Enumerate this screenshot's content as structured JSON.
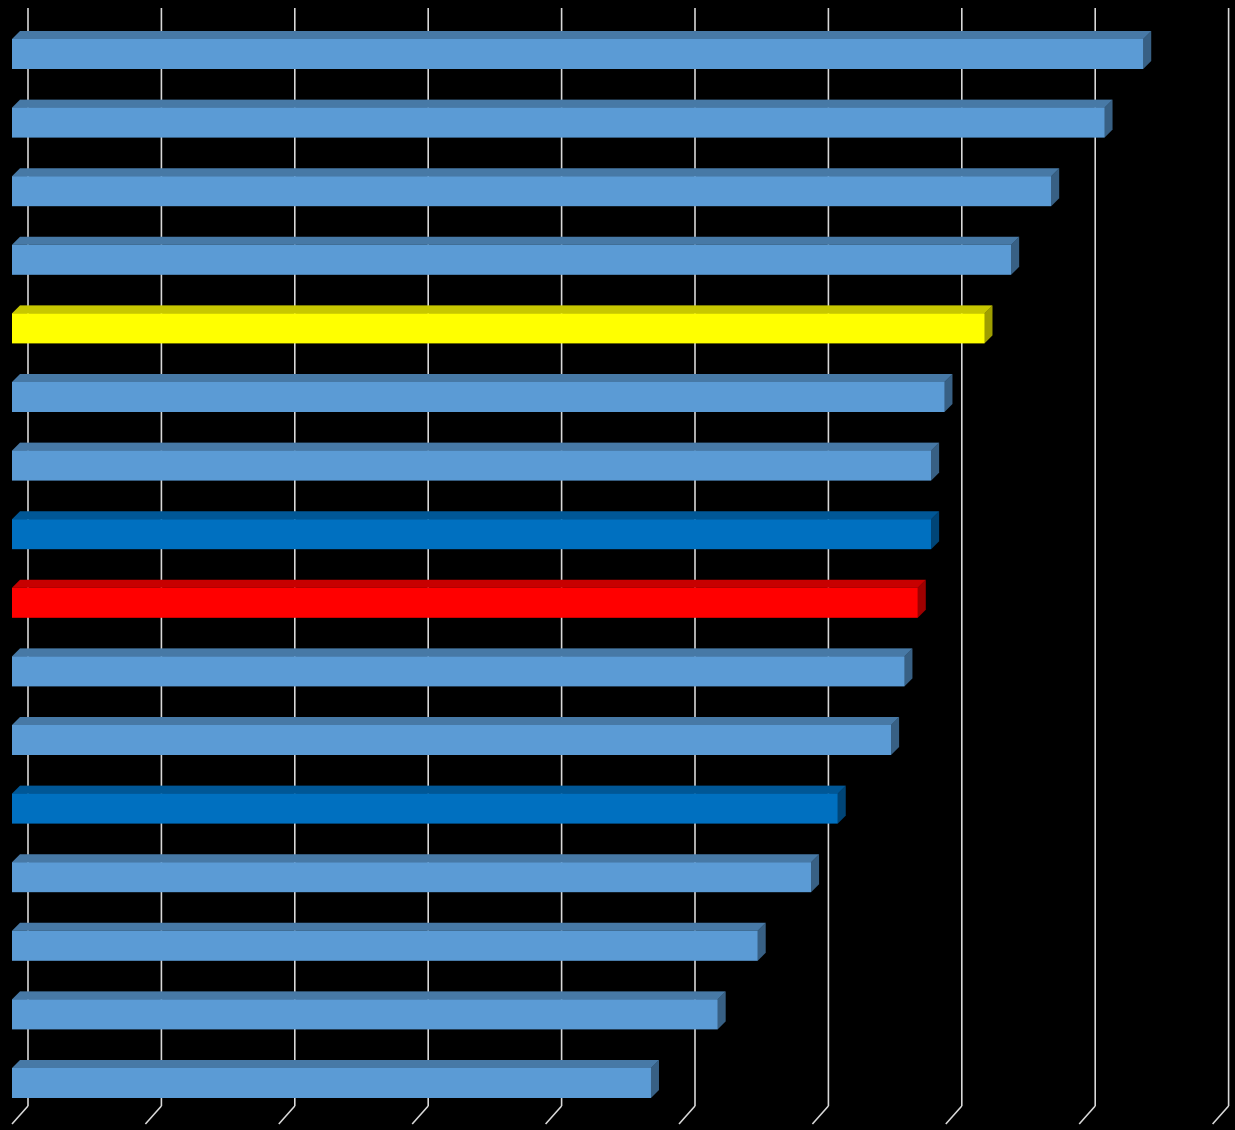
{
  "chart_data": {
    "type": "bar",
    "orientation": "horizontal",
    "style": "3d",
    "title": "",
    "xlabel": "",
    "ylabel": "",
    "xlim": [
      0,
      9
    ],
    "grid": true,
    "legend": "none",
    "values": [
      8.48,
      8.19,
      7.79,
      7.49,
      7.29,
      6.99,
      6.89,
      6.89,
      6.79,
      6.69,
      6.59,
      6.19,
      5.99,
      5.59,
      5.29,
      4.79
    ],
    "bar_colors": [
      "#5B9BD5",
      "#5B9BD5",
      "#5B9BD5",
      "#5B9BD5",
      "#FFFF00",
      "#5B9BD5",
      "#5B9BD5",
      "#0070C0",
      "#FF0000",
      "#5B9BD5",
      "#5B9BD5",
      "#0070C0",
      "#5B9BD5",
      "#5B9BD5",
      "#5B9BD5",
      "#5B9BD5"
    ],
    "gridline_color": "#D9D9D9",
    "background": "#000000"
  }
}
